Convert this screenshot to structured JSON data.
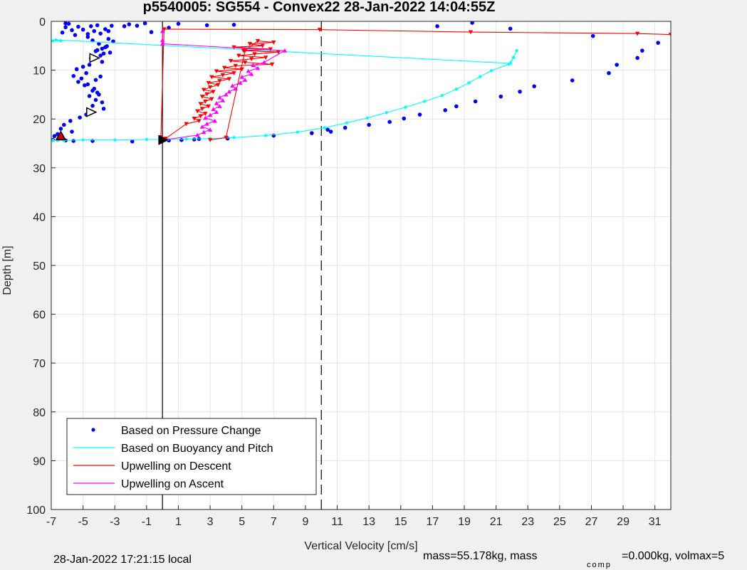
{
  "chart_data": {
    "type": "scatter",
    "title": "p5540005: SG554 - Convex22 28-Jan-2022 14:04:55Z",
    "xlabel": "Vertical Velocity [cm/s]",
    "ylabel": "Depth [m]",
    "xlim": [
      -7,
      32
    ],
    "ylim": [
      0,
      100
    ],
    "y_reversed": true,
    "grid": true,
    "xticks": [
      -7,
      -5,
      -3,
      -1,
      1,
      3,
      5,
      7,
      9,
      11,
      13,
      15,
      17,
      19,
      21,
      23,
      25,
      27,
      29,
      31
    ],
    "yticks": [
      0,
      10,
      20,
      30,
      40,
      50,
      60,
      70,
      80,
      90,
      100
    ],
    "legend_location": "bottom-left",
    "series": [
      {
        "name": "Based on Pressure Change",
        "color": "#0000ff",
        "style": "dots",
        "x": [
          -5.9,
          -6.1,
          -5.7,
          -6.3,
          -5.5,
          -4.7,
          -4.5,
          -4.1,
          -4.3,
          -3.9,
          -3.6,
          -3.4,
          -3.2,
          -4.0,
          -3.5,
          -3.8,
          -4.2,
          -3.7,
          -3.1,
          -4.4,
          -4.1,
          -3.6,
          -3.3,
          -3.9,
          -4.5,
          -3.8,
          -4.6,
          -5.0,
          -5.4,
          -4.8,
          -5.6,
          -5.1,
          -5.3,
          -4.9,
          -4.3,
          -4.1,
          -4.6,
          -4.2,
          -3.8,
          -4.0,
          -4.4,
          -4.7,
          -4.2,
          -3.9,
          -4.4,
          -3.7,
          -4.6,
          -4.8,
          -5.2,
          -5.8,
          -6.2,
          -6.4,
          -5.7,
          -6.6,
          -6.8,
          -6.5,
          -6.9,
          -6.1,
          -5.6,
          -4.4,
          -1.9,
          0.4,
          1.2,
          2.0,
          2.3,
          4.1,
          7.0,
          9.4,
          10.6,
          10.4,
          11.5,
          13.0,
          14.3,
          15.2,
          16.2,
          17.8,
          18.5,
          19.7,
          21.3,
          22.5,
          23.4,
          25.8,
          28.1,
          28.6,
          29.9,
          30.2,
          31.2,
          27.1,
          21.9,
          19.5,
          17.3,
          -0.7,
          -1.1,
          -2.1,
          0.4,
          1.0,
          2.8,
          4.5,
          -2.4,
          -1.6,
          -3.4,
          -6.1,
          -5.3,
          -5.0,
          -4.7
        ],
        "y": [
          0.5,
          1.2,
          1.8,
          2.3,
          2.8,
          3.2,
          1.0,
          0.8,
          2.0,
          2.5,
          1.6,
          3.6,
          0.9,
          4.6,
          5.1,
          5.6,
          6.1,
          6.6,
          4.1,
          3.9,
          5.9,
          5.3,
          6.4,
          7.0,
          7.6,
          8.3,
          8.9,
          9.3,
          9.8,
          10.6,
          11.2,
          11.7,
          12.4,
          13.1,
          13.8,
          14.6,
          15.3,
          16.1,
          16.6,
          15.0,
          14.2,
          12.9,
          12.0,
          11.3,
          17.3,
          17.9,
          18.4,
          19.1,
          19.7,
          20.4,
          21.2,
          22.0,
          22.6,
          23.1,
          23.5,
          24.0,
          24.3,
          24.4,
          24.5,
          24.5,
          24.6,
          24.4,
          24.3,
          24.2,
          24.1,
          24.0,
          23.4,
          22.9,
          22.6,
          22.2,
          21.8,
          21.2,
          20.6,
          19.9,
          19.1,
          18.2,
          17.4,
          16.4,
          15.4,
          14.4,
          13.3,
          12.1,
          10.6,
          8.9,
          7.5,
          6.0,
          4.4,
          3.0,
          1.5,
          0.3,
          1.0,
          2.2,
          0.4,
          0.6,
          1.3,
          0.5,
          0.8,
          0.7,
          1.0,
          0.9,
          2.0,
          0.4,
          1.1,
          1.7,
          2.6
        ]
      },
      {
        "name": "Based on Buoyancy and Pitch",
        "color": "#00ffff",
        "style": "line-dots",
        "x": [
          -6.9,
          -6.6,
          -6.2,
          -5.0,
          -3.0,
          -1.0,
          0.3,
          1.5,
          3.0,
          4.5,
          6.5,
          8.5,
          10.2,
          11.6,
          12.9,
          14.1,
          15.3,
          16.5,
          17.6,
          18.5,
          19.3,
          20.0,
          20.7,
          21.8,
          22.1,
          22.3,
          22.1,
          21.9,
          -6.7,
          -6.4,
          -6.9
        ],
        "y": [
          24.4,
          24.4,
          24.4,
          24.3,
          24.3,
          24.2,
          24.2,
          24.1,
          24.0,
          23.8,
          23.4,
          22.7,
          21.8,
          20.8,
          19.8,
          18.7,
          17.6,
          16.4,
          15.2,
          13.9,
          12.6,
          11.3,
          10.1,
          8.8,
          7.4,
          6.0,
          7.4,
          8.6,
          3.8,
          4.0,
          4.0
        ]
      },
      {
        "name": "Upwelling on Descent",
        "color": "#ff0000",
        "style": "line-triangle-down",
        "x": [
          3.0,
          4.0,
          5.2,
          6.0,
          7.0,
          5.5,
          6.3,
          4.5,
          6.8,
          5.1,
          7.3,
          5.8,
          4.8,
          6.5,
          5.6,
          4.3,
          5.2,
          6.9,
          4.6,
          3.9,
          5.0,
          3.4,
          4.5,
          3.8,
          3.1,
          4.2,
          3.6,
          2.9,
          3.5,
          3.0,
          2.6,
          3.2,
          2.8,
          2.5,
          3.1,
          2.7,
          2.4,
          2.9,
          2.5,
          2.2,
          2.7,
          2.4,
          2.0,
          2.3,
          1.5,
          0.2,
          -0.1,
          0.1,
          9.9,
          19.4,
          29.9,
          32.0
        ],
        "y": [
          24.3,
          23.8,
          6.0,
          4.0,
          4.3,
          4.6,
          5.0,
          5.3,
          5.7,
          6.0,
          6.3,
          6.7,
          7.0,
          7.4,
          7.7,
          8.1,
          8.4,
          8.8,
          9.1,
          9.5,
          9.8,
          10.2,
          10.6,
          11.0,
          11.4,
          11.8,
          12.2,
          12.6,
          13.0,
          13.5,
          14.0,
          14.4,
          14.9,
          15.4,
          15.9,
          16.4,
          16.9,
          17.4,
          17.9,
          18.4,
          18.9,
          19.4,
          19.9,
          20.4,
          21.0,
          24.0,
          23.7,
          1.6,
          1.7,
          2.2,
          2.5,
          2.7
        ]
      },
      {
        "name": "Upwelling on Ascent",
        "color": "#ff00ff",
        "style": "line-triangle-up",
        "x": [
          0.1,
          2.2,
          2.6,
          3.0,
          2.5,
          2.8,
          3.3,
          2.7,
          3.0,
          3.4,
          3.2,
          3.6,
          3.4,
          3.8,
          3.6,
          4.0,
          4.2,
          4.6,
          4.4,
          4.9,
          5.2,
          5.0,
          5.6,
          5.4,
          6.0,
          5.7,
          6.4,
          7.7,
          0.0,
          0.0,
          0.0
        ],
        "y": [
          24.3,
          23.3,
          22.7,
          22.2,
          21.6,
          21.0,
          20.4,
          19.8,
          19.2,
          18.6,
          18.0,
          17.4,
          16.8,
          16.2,
          15.6,
          15.0,
          14.4,
          13.8,
          13.2,
          12.6,
          12.0,
          11.4,
          10.8,
          10.2,
          9.6,
          9.0,
          8.4,
          6.0,
          4.6,
          3.9,
          2.0
        ]
      },
      {
        "name": "Surface dive marker",
        "color": "#ff0000",
        "style": "marker",
        "x": [
          -6.4
        ],
        "y": [
          23.5
        ]
      },
      {
        "name": "Climb marker",
        "color": "#000000",
        "style": "marker",
        "x": [
          -4.3,
          -4.5
        ],
        "y": [
          7.5,
          18.6
        ]
      },
      {
        "name": "Apogee marker",
        "color": "#000000",
        "style": "marker",
        "x": [
          0.0
        ],
        "y": [
          24.3
        ]
      }
    ],
    "reference_lines": [
      {
        "axis": "x",
        "value": 0,
        "style": "solid",
        "color": "#000000"
      },
      {
        "axis": "x",
        "value": 10,
        "style": "dashed",
        "color": "#000000"
      }
    ]
  },
  "footer": {
    "local_time": "28-Jan-2022 17:21:15 local",
    "mass_text": "mass=55.178kg, mass",
    "comp_subscript": "comp",
    "comp_text": "=0.000kg, volmax=5"
  }
}
